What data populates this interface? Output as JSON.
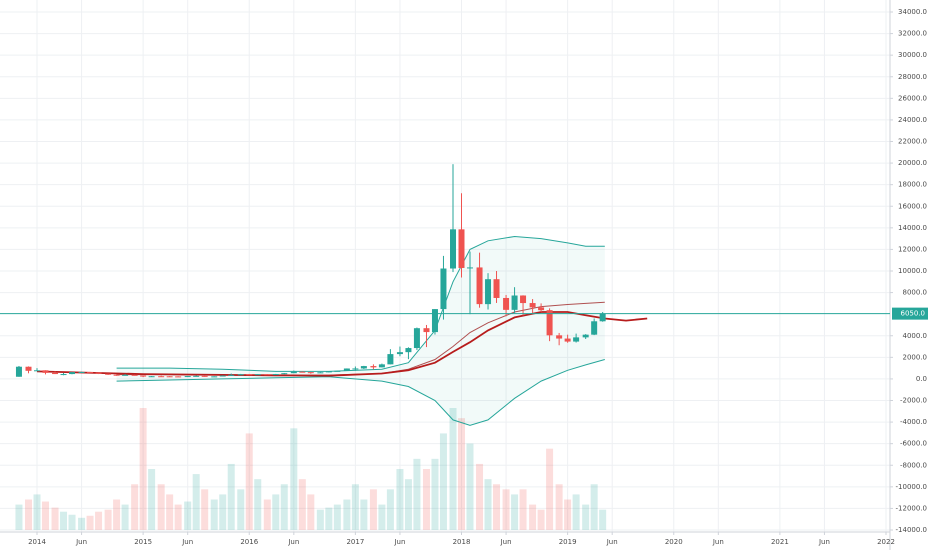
{
  "chart_data": {
    "type": "candlestick",
    "up_color": "#26a69a",
    "down_color": "#ef5350",
    "grid": true,
    "xlim": [
      2013.65,
      2022.38
    ],
    "ylim": [
      -14000,
      34000
    ],
    "xticks": [
      {
        "value": 2014,
        "label": "2014"
      },
      {
        "value": 2014.42,
        "label": "Jun"
      },
      {
        "value": 2015,
        "label": "2015"
      },
      {
        "value": 2015.42,
        "label": "Jun"
      },
      {
        "value": 2016,
        "label": "2016"
      },
      {
        "value": 2016.42,
        "label": "Jun"
      },
      {
        "value": 2017,
        "label": "2017"
      },
      {
        "value": 2017.42,
        "label": "Jun"
      },
      {
        "value": 2018,
        "label": "2018"
      },
      {
        "value": 2018.42,
        "label": "Jun"
      },
      {
        "value": 2019,
        "label": "2019"
      },
      {
        "value": 2019.42,
        "label": "Jun"
      },
      {
        "value": 2020,
        "label": "2020"
      },
      {
        "value": 2020.42,
        "label": "Jun"
      },
      {
        "value": 2021,
        "label": "2021"
      },
      {
        "value": 2021.42,
        "label": "Jun"
      },
      {
        "value": 2022,
        "label": "2022"
      }
    ],
    "yticks": [
      {
        "value": -14000,
        "label": "-14000.0"
      },
      {
        "value": -12000,
        "label": "-12000.0"
      },
      {
        "value": -10000,
        "label": "-10000.0"
      },
      {
        "value": -8000,
        "label": "-8000.0"
      },
      {
        "value": -6000,
        "label": "-6000.0"
      },
      {
        "value": -4000,
        "label": "-4000.0"
      },
      {
        "value": -2000,
        "label": "-2000.0"
      },
      {
        "value": 0,
        "label": "0.0"
      },
      {
        "value": 2000,
        "label": "2000.0"
      },
      {
        "value": 4000,
        "label": "4000.0"
      },
      {
        "value": 8000,
        "label": "8000.0"
      },
      {
        "value": 10000,
        "label": "10000.0"
      },
      {
        "value": 12000,
        "label": "12000.0"
      },
      {
        "value": 14000,
        "label": "14000.0"
      },
      {
        "value": 16000,
        "label": "16000.0"
      },
      {
        "value": 18000,
        "label": "18000.0"
      },
      {
        "value": 20000,
        "label": "20000.0"
      },
      {
        "value": 22000,
        "label": "22000.0"
      },
      {
        "value": 24000,
        "label": "24000.0"
      },
      {
        "value": 26000,
        "label": "26000.0"
      },
      {
        "value": 28000,
        "label": "28000.0"
      },
      {
        "value": 30000,
        "label": "30000.0"
      },
      {
        "value": 32000,
        "label": "32000.0"
      },
      {
        "value": 34000,
        "label": "34000.0"
      }
    ],
    "last_price": {
      "value": 6050,
      "label": "6050.0"
    },
    "candles": {
      "x": [
        2013.83,
        2013.92,
        2014.0,
        2014.08,
        2014.17,
        2014.25,
        2014.33,
        2014.42,
        2014.5,
        2014.58,
        2014.67,
        2014.75,
        2014.83,
        2014.92,
        2015.0,
        2015.08,
        2015.17,
        2015.25,
        2015.33,
        2015.42,
        2015.5,
        2015.58,
        2015.67,
        2015.75,
        2015.83,
        2015.92,
        2016.0,
        2016.08,
        2016.17,
        2016.25,
        2016.33,
        2016.42,
        2016.5,
        2016.58,
        2016.67,
        2016.75,
        2016.83,
        2016.92,
        2017.0,
        2017.08,
        2017.17,
        2017.25,
        2017.33,
        2017.42,
        2017.5,
        2017.58,
        2017.67,
        2017.75,
        2017.83,
        2017.92,
        2018.0,
        2018.08,
        2018.17,
        2018.25,
        2018.33,
        2018.42,
        2018.5,
        2018.58,
        2018.67,
        2018.75,
        2018.83,
        2018.92,
        2019.0,
        2019.08,
        2019.17,
        2019.25,
        2019.33
      ],
      "open": [
        200,
        1130,
        750,
        800,
        560,
        450,
        450,
        630,
        640,
        590,
        480,
        390,
        340,
        380,
        320,
        220,
        250,
        245,
        235,
        230,
        265,
        285,
        230,
        237,
        315,
        378,
        430,
        370,
        437,
        416,
        450,
        530,
        670,
        625,
        575,
        610,
        700,
        745,
        965,
        970,
        1190,
        1070,
        1350,
        2300,
        2480,
        2860,
        4700,
        4340,
        6470,
        10230,
        13860,
        10280,
        10330,
        6930,
        9240,
        7500,
        6400,
        7730,
        7030,
        6630,
        6370,
        4040,
        3740,
        3460,
        3850,
        4100,
        5340
      ],
      "high": [
        1200,
        1160,
        1000,
        800,
        700,
        550,
        630,
        680,
        650,
        600,
        490,
        420,
        460,
        390,
        320,
        270,
        300,
        260,
        250,
        270,
        315,
        285,
        245,
        330,
        500,
        465,
        460,
        440,
        440,
        465,
        550,
        780,
        700,
        625,
        630,
        720,
        750,
        975,
        1150,
        1210,
        1350,
        1420,
        2760,
        3000,
        2930,
        4760,
        5000,
        6470,
        11400,
        19900,
        17200,
        11800,
        11700,
        9800,
        10000,
        7780,
        8500,
        7750,
        7400,
        7000,
        6540,
        4260,
        4100,
        4200,
        4150,
        5600,
        6200
      ],
      "low": [
        200,
        520,
        750,
        420,
        450,
        340,
        430,
        550,
        570,
        450,
        370,
        290,
        330,
        310,
        170,
        200,
        230,
        210,
        225,
        220,
        255,
        200,
        225,
        235,
        305,
        350,
        350,
        365,
        400,
        415,
        440,
        530,
        610,
        480,
        570,
        605,
        685,
        745,
        750,
        920,
        890,
        1060,
        1350,
        2100,
        1830,
        2670,
        2950,
        4110,
        5500,
        9900,
        9400,
        6000,
        6600,
        6430,
        7040,
        5800,
        6100,
        5880,
        6100,
        6200,
        3500,
        3120,
        3350,
        3370,
        3700,
        4060,
        5300
      ],
      "close": [
        1130,
        750,
        800,
        560,
        450,
        450,
        630,
        640,
        590,
        480,
        390,
        340,
        380,
        320,
        220,
        250,
        245,
        235,
        230,
        265,
        285,
        230,
        237,
        315,
        378,
        430,
        370,
        437,
        416,
        450,
        530,
        670,
        625,
        575,
        610,
        700,
        745,
        965,
        970,
        1190,
        1070,
        1350,
        2300,
        2480,
        2860,
        4700,
        4340,
        6470,
        10230,
        13860,
        10280,
        10330,
        6930,
        9240,
        7500,
        6400,
        7730,
        7030,
        6630,
        6370,
        4040,
        3740,
        3460,
        3850,
        4100,
        5340,
        6050
      ],
      "volume": [
        25,
        30,
        35,
        28,
        22,
        18,
        15,
        12,
        14,
        18,
        20,
        30,
        25,
        45,
        120,
        60,
        45,
        35,
        25,
        28,
        55,
        40,
        30,
        35,
        65,
        40,
        95,
        50,
        30,
        35,
        45,
        100,
        50,
        35,
        20,
        22,
        25,
        30,
        45,
        30,
        40,
        25,
        40,
        60,
        50,
        70,
        60,
        70,
        95,
        120,
        110,
        85,
        65,
        50,
        45,
        40,
        35,
        40,
        25,
        20,
        80,
        45,
        30,
        35,
        25,
        45,
        20
      ]
    },
    "bands": {
      "color": "#26a69a",
      "fill": "#26a69a",
      "x": [
        2014.75,
        2015.25,
        2015.75,
        2016.25,
        2016.75,
        2017.25,
        2017.5,
        2017.75,
        2017.92,
        2018.08,
        2018.25,
        2018.5,
        2018.75,
        2019.0,
        2019.17,
        2019.35
      ],
      "upper": [
        1000,
        1000,
        900,
        700,
        700,
        900,
        1500,
        4500,
        9000,
        12000,
        12800,
        13200,
        13000,
        12600,
        12300,
        12300
      ],
      "lower": [
        -200,
        -100,
        0,
        100,
        200,
        -200,
        -700,
        -2000,
        -3800,
        -4300,
        -3800,
        -1800,
        -200,
        800,
        1300,
        1800
      ],
      "middle": [
        400,
        400,
        350,
        300,
        350,
        500,
        900,
        1800,
        3000,
        4300,
        5200,
        6200,
        6700,
        6900,
        7000,
        7100
      ],
      "middle_color": "#b05050"
    },
    "moving_average": {
      "color": "#b71c1c",
      "x": [
        2014.0,
        2015.0,
        2016.0,
        2016.75,
        2017.25,
        2017.5,
        2017.75,
        2017.92,
        2018.08,
        2018.25,
        2018.5,
        2018.75,
        2019.0,
        2019.17,
        2019.35,
        2019.55,
        2019.75
      ],
      "values": [
        700,
        450,
        350,
        300,
        500,
        800,
        1500,
        2500,
        3400,
        4500,
        5700,
        6200,
        6200,
        5900,
        5600,
        5400,
        5600
      ]
    }
  }
}
